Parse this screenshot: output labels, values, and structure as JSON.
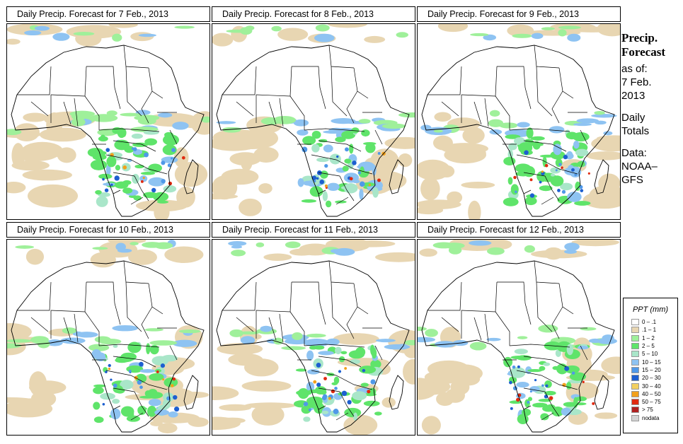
{
  "panels": [
    {
      "title": "Daily Precip. Forecast for  7 Feb., 2013"
    },
    {
      "title": "Daily Precip. Forecast for  8 Feb., 2013"
    },
    {
      "title": "Daily Precip. Forecast for  9 Feb., 2013"
    },
    {
      "title": "Daily Precip. Forecast for  10 Feb., 2013"
    },
    {
      "title": "Daily Precip. Forecast for  11 Feb., 2013"
    },
    {
      "title": "Daily Precip. Forecast for  12 Feb., 2013"
    }
  ],
  "side": {
    "title_line1": "Precip.",
    "title_line2": "Forecast",
    "asof_line1": "as of:",
    "asof_line2": "7 Feb.",
    "asof_line3": "2013",
    "totals_line1": "Daily",
    "totals_line2": "Totals",
    "data_line1": "Data:",
    "data_line2": "NOAA–",
    "data_line3": "GFS"
  },
  "legend": {
    "title": "PPT (mm)",
    "items": [
      {
        "label": "0 – .1",
        "color": "#ffffff"
      },
      {
        "label": ".1 – 1",
        "color": "#e8d6b2"
      },
      {
        "label": "1 – 2",
        "color": "#9ff09a"
      },
      {
        "label": "2 – 5",
        "color": "#5fe46a"
      },
      {
        "label": "5 – 10",
        "color": "#a9e6c9"
      },
      {
        "label": "10 – 15",
        "color": "#8ec3f2"
      },
      {
        "label": "15 – 20",
        "color": "#4f98e8"
      },
      {
        "label": "20 – 30",
        "color": "#1d5fd0"
      },
      {
        "label": "30 – 40",
        "color": "#f3d060"
      },
      {
        "label": "40 – 50",
        "color": "#f2a01b"
      },
      {
        "label": "50 – 75",
        "color": "#e02a10"
      },
      {
        "label": "> 75",
        "color": "#b02020"
      },
      {
        "label": "nodata",
        "color": "#d4d4d4"
      }
    ]
  }
}
